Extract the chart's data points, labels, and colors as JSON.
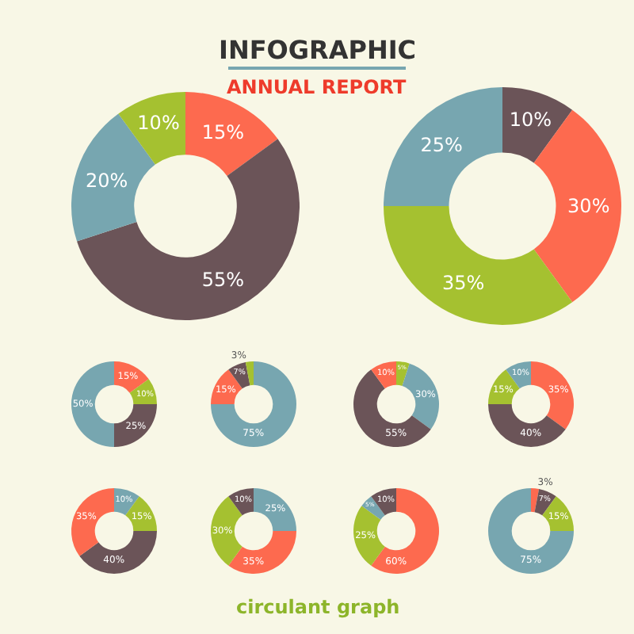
{
  "chart_data": [
    {
      "type": "donut",
      "title": "INFOGRAPHIC",
      "subtitle": "ANNUAL REPORT",
      "categories": [
        null,
        null,
        null,
        null
      ],
      "values": [
        15,
        55,
        20,
        10
      ],
      "value_labels": [
        "15%",
        "55%",
        "20%",
        "10%"
      ],
      "colors": [
        "#fd6a4f",
        "#6b5458",
        "#77a6b0",
        "#a5c130"
      ]
    },
    {
      "type": "donut",
      "categories": [
        null,
        null,
        null,
        null
      ],
      "values": [
        10,
        30,
        35,
        25
      ],
      "value_labels": [
        "10%",
        "30%",
        "35%",
        "25%"
      ],
      "colors": [
        "#6b5458",
        "#fd6a4f",
        "#a5c130",
        "#77a6b0"
      ]
    },
    {
      "type": "donut",
      "categories": [
        null,
        null,
        null,
        null
      ],
      "values": [
        15,
        10,
        25,
        50
      ],
      "value_labels": [
        "15%",
        "10%",
        "25%",
        "50%"
      ],
      "colors": [
        "#fd6a4f",
        "#a5c130",
        "#6b5458",
        "#77a6b0"
      ]
    },
    {
      "type": "donut",
      "categories": [
        null,
        null,
        null,
        null
      ],
      "values": [
        75,
        15,
        7,
        3
      ],
      "value_labels": [
        "75%",
        "15%",
        "7%",
        "3%"
      ],
      "colors": [
        "#77a6b0",
        "#fd6a4f",
        "#6b5458",
        "#a5c130"
      ]
    },
    {
      "type": "donut",
      "categories": [
        null,
        null,
        null,
        null
      ],
      "values": [
        5,
        30,
        55,
        10
      ],
      "value_labels": [
        "5%",
        "30%",
        "55%",
        "10%"
      ],
      "colors": [
        "#a5c130",
        "#77a6b0",
        "#6b5458",
        "#fd6a4f"
      ]
    },
    {
      "type": "donut",
      "categories": [
        null,
        null,
        null,
        null
      ],
      "values": [
        35,
        40,
        15,
        10
      ],
      "value_labels": [
        "35%",
        "40%",
        "15%",
        "10%"
      ],
      "colors": [
        "#fd6a4f",
        "#6b5458",
        "#a5c130",
        "#77a6b0"
      ]
    },
    {
      "type": "donut",
      "categories": [
        null,
        null,
        null,
        null
      ],
      "values": [
        10,
        15,
        40,
        35
      ],
      "value_labels": [
        "10%",
        "15%",
        "40%",
        "35%"
      ],
      "colors": [
        "#77a6b0",
        "#a5c130",
        "#6b5458",
        "#fd6a4f"
      ]
    },
    {
      "type": "donut",
      "categories": [
        null,
        null,
        null,
        null
      ],
      "values": [
        25,
        35,
        30,
        10
      ],
      "value_labels": [
        "25%",
        "35%",
        "30%",
        "10%"
      ],
      "colors": [
        "#77a6b0",
        "#fd6a4f",
        "#a5c130",
        "#6b5458"
      ]
    },
    {
      "type": "donut",
      "categories": [
        null,
        null,
        null,
        null
      ],
      "values": [
        60,
        25,
        5,
        10
      ],
      "value_labels": [
        "60%",
        "25%",
        "5%",
        "10%"
      ],
      "colors": [
        "#fd6a4f",
        "#a5c130",
        "#77a6b0",
        "#6b5458"
      ]
    },
    {
      "type": "donut",
      "categories": [
        null,
        null,
        null,
        null
      ],
      "values": [
        3,
        7,
        15,
        75
      ],
      "value_labels": [
        "3%",
        "7%",
        "15%",
        "75%"
      ],
      "colors": [
        "#fd6a4f",
        "#6b5458",
        "#a5c130",
        "#77a6b0"
      ],
      "annotations": [
        "circulant graph"
      ]
    }
  ]
}
